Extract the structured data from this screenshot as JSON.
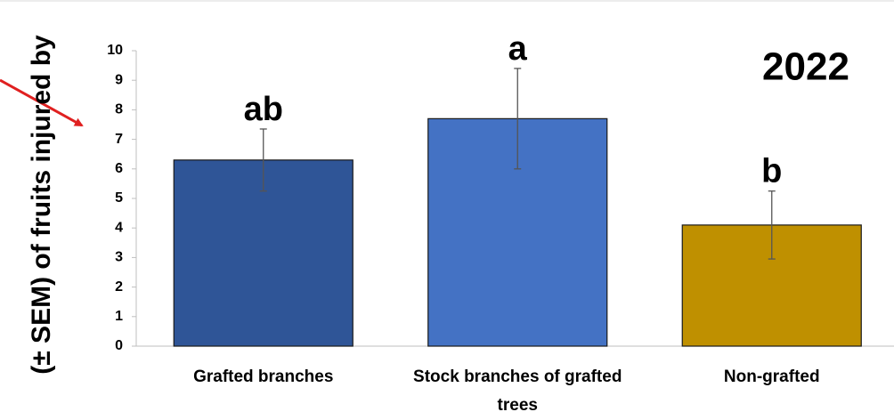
{
  "chart_data": {
    "type": "bar",
    "y_label": "(± SEM) of fruits injured by",
    "annotation": "2022",
    "categories": [
      "Grafted branches",
      "Stock branches of grafted trees",
      "Non-grafted"
    ],
    "values": [
      6.3,
      7.7,
      4.1
    ],
    "errors": [
      1.05,
      1.7,
      1.15
    ],
    "letters": [
      "ab",
      "a",
      "b"
    ],
    "colors": [
      "#2f5597",
      "#4472c4",
      "#bf9000"
    ],
    "ylim": [
      0,
      10
    ],
    "yticks": [
      0,
      1,
      2,
      3,
      4,
      5,
      6,
      7,
      8,
      9,
      10
    ],
    "grid": false
  }
}
